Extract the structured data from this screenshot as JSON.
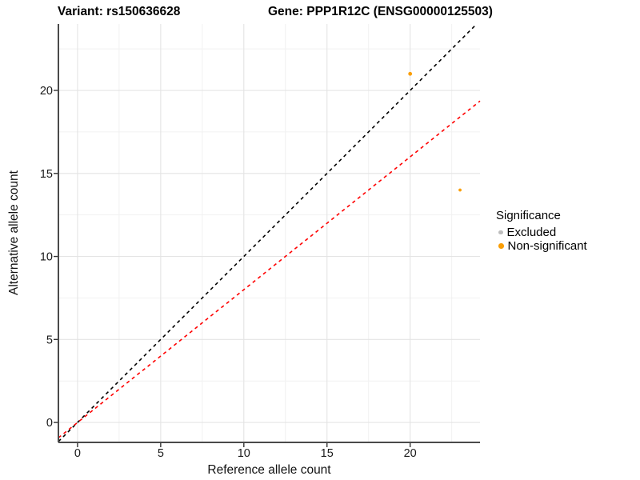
{
  "title": {
    "variant": "Variant: rs150636628",
    "gene": "Gene: PPP1R12C (ENSG00000125503)"
  },
  "axes": {
    "x": {
      "label": "Reference allele count",
      "ticks": [
        0,
        5,
        10,
        15,
        20
      ],
      "minor_ticks": [
        2.5,
        7.5,
        12.5,
        17.5,
        22.5
      ],
      "range": [
        -1.15,
        24.2
      ]
    },
    "y": {
      "label": "Alternative allele count",
      "ticks": [
        0,
        5,
        10,
        15,
        20
      ],
      "minor_ticks": [
        2.5,
        7.5,
        12.5,
        17.5,
        22.5
      ],
      "range": [
        -1.2,
        24.0
      ]
    }
  },
  "legend": {
    "title": "Significance",
    "items": [
      {
        "label": "Excluded",
        "color": "#BDBDBD",
        "size": 5.5
      },
      {
        "label": "Non-significant",
        "color": "#FA9E05",
        "size": 6.5
      }
    ]
  },
  "chart_data": {
    "type": "scatter",
    "title": "Variant: rs150636628   Gene: PPP1R12C (ENSG00000125503)",
    "xlabel": "Reference allele count",
    "ylabel": "Alternative allele count",
    "xlim": [
      -1.15,
      24.2
    ],
    "ylim": [
      -1.2,
      24.0
    ],
    "grid": {
      "major_color": "#E4E4E4",
      "minor_color": "#F1F1F1",
      "minor_on": true
    },
    "axis_line_color": "#4A4A4A",
    "tick_color": "#333333",
    "tick_label_color": "#1A1A1A",
    "legend_position": "right",
    "points": [
      {
        "x": 20,
        "y": 21,
        "series": "Non-significant",
        "color": "#FA9E05",
        "r": 2.4
      },
      {
        "x": 23,
        "y": 14,
        "series": "Non-significant",
        "color": "#FA9E05",
        "r": 1.9
      }
    ],
    "lines": [
      {
        "name": "identity-line",
        "slope": 1.0,
        "intercept": 0,
        "color": "#000000",
        "dash": "4.2,4.2"
      },
      {
        "name": "expected-ratio-line",
        "slope": 0.8,
        "intercept": 0,
        "color": "#FF0000",
        "dash": "4.2,4.2"
      }
    ],
    "series_legend": [
      {
        "name": "Excluded",
        "color": "#BDBDBD"
      },
      {
        "name": "Non-significant",
        "color": "#FA9E05"
      }
    ]
  }
}
